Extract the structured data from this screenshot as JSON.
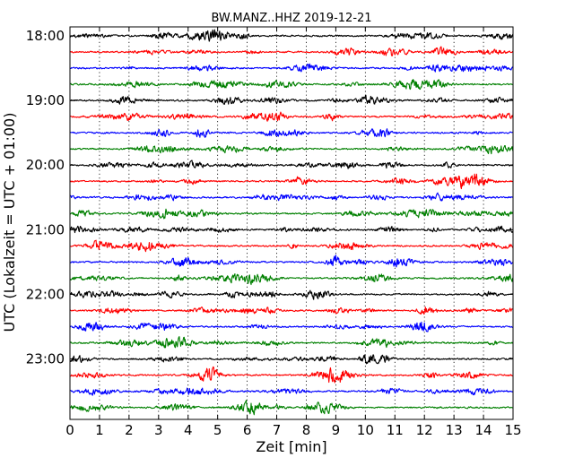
{
  "chart_data": {
    "type": "line",
    "title": "BW.MANZ..HHZ 2019-12-21",
    "xlabel": "Zeit  [min]",
    "ylabel": "UTC (Lokalzeit = UTC + 01:00)",
    "xlim": [
      0,
      15
    ],
    "x_ticks": [
      "0",
      "1",
      "2",
      "3",
      "4",
      "5",
      "6",
      "7",
      "8",
      "9",
      "10",
      "11",
      "12",
      "13",
      "14",
      "15"
    ],
    "y_tick_labels": [
      "18:00",
      "19:00",
      "20:00",
      "21:00",
      "22:00",
      "23:00"
    ],
    "grid": {
      "vertical": true,
      "style": "dotted"
    },
    "trace_start": "18:00",
    "trace_interval_minutes": 15,
    "trace_count": 24,
    "trace_colors": [
      "#000000",
      "#ff0000",
      "#0000ff",
      "#008000"
    ]
  }
}
